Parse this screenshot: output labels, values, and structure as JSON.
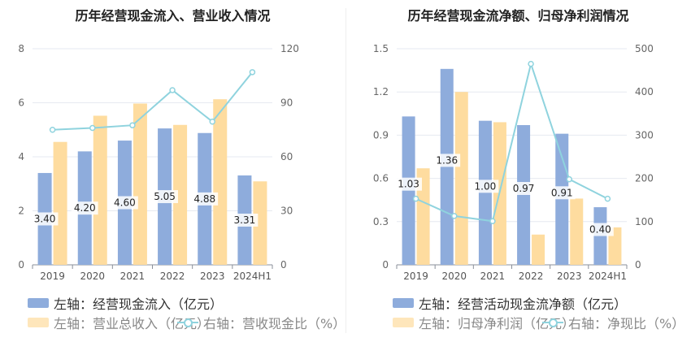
{
  "chart_data": [
    {
      "type": "bar",
      "title": "历年经营现金流入、营业收入情况",
      "categories": [
        "2019",
        "2020",
        "2021",
        "2022",
        "2023",
        "2024H1"
      ],
      "left_axis": {
        "ylim": [
          0,
          8
        ],
        "ticks": [
          "0",
          "2",
          "4",
          "6",
          "8"
        ]
      },
      "right_axis": {
        "ylim": [
          0,
          120
        ],
        "ticks": [
          "0",
          "30",
          "60",
          "90",
          "120"
        ]
      },
      "series": [
        {
          "name": "左轴：经营现金流入（亿元）",
          "kind": "bar",
          "axis": "left",
          "color": "#8eacdc",
          "values": [
            3.4,
            4.2,
            4.6,
            5.05,
            4.88,
            3.31
          ],
          "labels": [
            "3.40",
            "4.20",
            "4.60",
            "5.05",
            "4.88",
            "3.31"
          ]
        },
        {
          "name": "左轴：营业总收入（亿元）",
          "kind": "bar",
          "axis": "left",
          "color": "#fedc9f",
          "values": [
            4.55,
            5.52,
            5.97,
            5.18,
            6.13,
            3.09
          ]
        },
        {
          "name": "右轴：营收现金比（%）",
          "kind": "line",
          "axis": "right",
          "color": "#8fd3de",
          "values": [
            75,
            76,
            77.5,
            97,
            79.5,
            107
          ]
        }
      ],
      "grid": true,
      "legend_position": "bottom"
    },
    {
      "type": "bar",
      "title": "历年经营现金流净额、归母净利润情况",
      "categories": [
        "2019",
        "2020",
        "2021",
        "2022",
        "2023",
        "2024H1"
      ],
      "left_axis": {
        "ylim": [
          0,
          1.5
        ],
        "ticks": [
          "0",
          "0.3",
          "0.6",
          "0.9",
          "1.2",
          "1.5"
        ]
      },
      "right_axis": {
        "ylim": [
          0,
          500
        ],
        "ticks": [
          "0",
          "100",
          "200",
          "300",
          "400",
          "500"
        ]
      },
      "series": [
        {
          "name": "左轴：经营活动现金流净额（亿元）",
          "kind": "bar",
          "axis": "left",
          "color": "#8eacdc",
          "values": [
            1.03,
            1.36,
            1.0,
            0.97,
            0.91,
            0.4
          ],
          "labels": [
            "1.03",
            "1.36",
            "1.00",
            "0.97",
            "0.91",
            "0.40"
          ]
        },
        {
          "name": "左轴：归母净利润（亿元）",
          "kind": "bar",
          "axis": "left",
          "color": "#fedc9f",
          "values": [
            0.67,
            1.2,
            0.99,
            0.21,
            0.46,
            0.26
          ]
        },
        {
          "name": "右轴：净现比（%）",
          "kind": "line",
          "axis": "right",
          "color": "#8fd3de",
          "values": [
            153,
            113,
            101,
            465,
            198,
            153
          ]
        }
      ],
      "grid": true,
      "legend_position": "bottom"
    }
  ]
}
